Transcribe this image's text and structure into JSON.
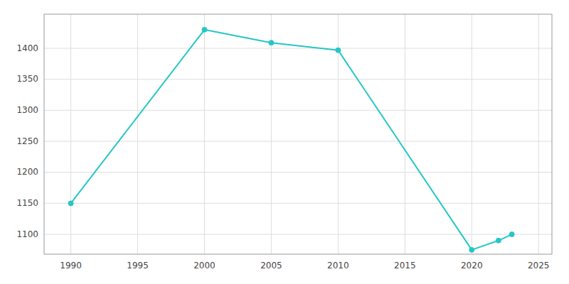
{
  "chart_data": {
    "type": "line",
    "x": [
      1990,
      2000,
      2005,
      2010,
      2020,
      2022,
      2023
    ],
    "values": [
      1150,
      1430,
      1409,
      1397,
      1075,
      1090,
      1100
    ],
    "color": "#26C6C6",
    "marker": "circle",
    "xlim": [
      1988,
      2026
    ],
    "ylim": [
      1068,
      1455
    ],
    "xticks": [
      1990,
      1995,
      2000,
      2005,
      2010,
      2015,
      2020,
      2025
    ],
    "yticks": [
      1100,
      1150,
      1200,
      1250,
      1300,
      1350,
      1400
    ],
    "grid": true
  }
}
